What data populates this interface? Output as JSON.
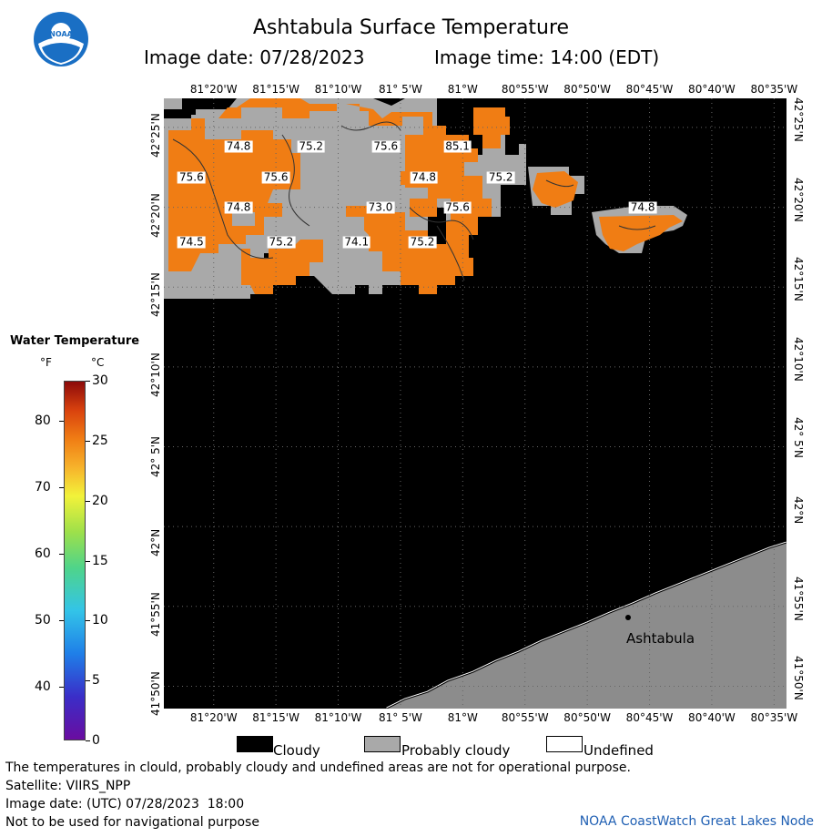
{
  "header": {
    "title": "Ashtabula Surface Temperature",
    "image_date": "Image date: 07/28/2023",
    "image_time": "Image time: 14:00 (EDT)"
  },
  "logo": {
    "text": "NOAA",
    "icon": "noaa-logo-icon"
  },
  "map": {
    "lon_labels": [
      "81°20'W",
      "81°15'W",
      "81°10'W",
      "81° 5'W",
      "81°W",
      "80°55'W",
      "80°50'W",
      "80°45'W",
      "80°40'W",
      "80°35'W"
    ],
    "lat_labels": [
      "42°25'N",
      "42°20'N",
      "42°15'N",
      "42°10'N",
      "42° 5'N",
      "42°N",
      "41°55'N",
      "41°50'N"
    ],
    "city": "Ashtabula",
    "temperature_labels": [
      {
        "value": "74.8",
        "lon": -81.3,
        "lat": 42.397
      },
      {
        "value": "75.2",
        "lon": -81.203,
        "lat": 42.397
      },
      {
        "value": "75.6",
        "lon": -81.103,
        "lat": 42.397
      },
      {
        "value": "85.1",
        "lon": -81.007,
        "lat": 42.397
      },
      {
        "value": "75.6",
        "lon": -81.363,
        "lat": 42.364
      },
      {
        "value": "75.6",
        "lon": -81.25,
        "lat": 42.364
      },
      {
        "value": "74.8",
        "lon": -81.052,
        "lat": 42.364
      },
      {
        "value": "75.2",
        "lon": -80.949,
        "lat": 42.364
      },
      {
        "value": "74.8",
        "lon": -81.3,
        "lat": 42.333
      },
      {
        "value": "73.0",
        "lon": -81.11,
        "lat": 42.333
      },
      {
        "value": "75.6",
        "lon": -81.007,
        "lat": 42.333
      },
      {
        "value": "74.8",
        "lon": -80.759,
        "lat": 42.333
      },
      {
        "value": "74.5",
        "lon": -81.363,
        "lat": 42.297
      },
      {
        "value": "75.2",
        "lon": -81.243,
        "lat": 42.297
      },
      {
        "value": "74.1",
        "lon": -81.142,
        "lat": 42.297
      },
      {
        "value": "75.2",
        "lon": -81.054,
        "lat": 42.297
      }
    ]
  },
  "legend": {
    "title": "Water Temperature",
    "unit_f": "°F",
    "unit_c": "°C",
    "f_ticks": [
      "40",
      "50",
      "60",
      "70",
      "80"
    ],
    "c_ticks": [
      "0",
      "5",
      "10",
      "15",
      "20",
      "25",
      "30"
    ]
  },
  "key": {
    "cloudy": "Cloudy",
    "probably_cloudy": "Probably cloudy",
    "undefined": "Undefined"
  },
  "notes": {
    "disclaimer": "The temperatures in clould, probably cloudy and undefined areas are not for operational purpose.",
    "satellite": "Satellite: VIIRS_NPP",
    "utc_date": "Image date: (UTC) 07/28/2023  18:00",
    "navigation": "Not to be used for navigational purpose",
    "credit": "NOAA CoastWatch Great Lakes Node"
  },
  "colors": {
    "water_warm": "#f07d14",
    "cloudy": "#000000",
    "probably_cloudy": "#a9a9a9",
    "land": "#8c8c8c",
    "credit_text": "#1f5fb3"
  }
}
